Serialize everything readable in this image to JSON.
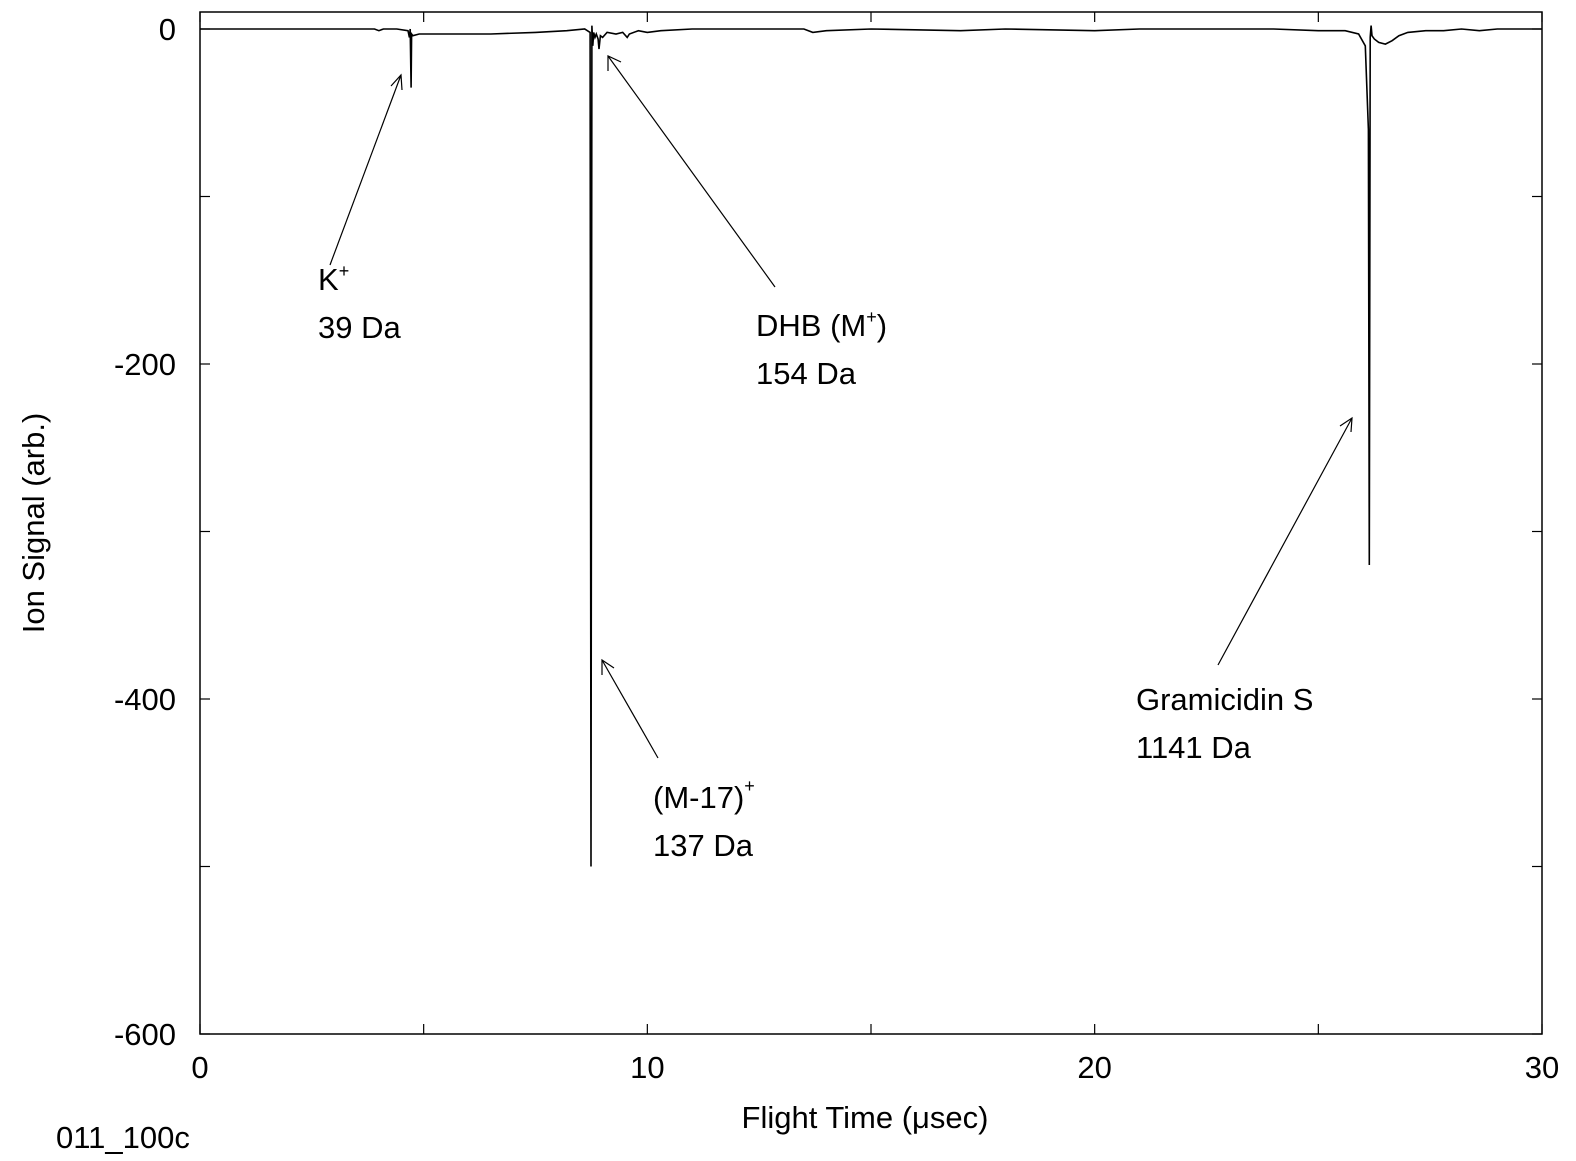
{
  "chart_data": {
    "type": "line",
    "title": "",
    "xlabel": "Flight Time (μsec)",
    "ylabel": "Ion Signal (arb.)",
    "xlim": [
      0,
      30
    ],
    "ylim": [
      -600,
      0
    ],
    "x_ticks": [
      0,
      10,
      20,
      30
    ],
    "y_ticks": [
      0,
      -200,
      -400,
      -600
    ],
    "x_tick_labels": [
      "0",
      "10",
      "20",
      "30"
    ],
    "y_tick_labels": [
      "0",
      "-200",
      "-400",
      "-600"
    ],
    "grid": false,
    "series": [
      {
        "x": [
          0,
          3.9,
          4.0,
          4.1,
          4.4,
          4.65,
          4.68,
          4.7,
          4.72,
          4.73,
          4.76,
          4.9,
          5.5,
          6.5,
          7.5,
          8.2,
          8.6,
          8.72,
          8.74,
          8.76,
          8.78,
          8.8,
          8.83,
          8.86,
          8.9,
          8.92,
          8.95,
          9.0,
          9.1,
          9.3,
          9.45,
          9.55,
          9.6,
          9.8,
          10.0,
          10.3,
          11.0,
          12.0,
          13.5,
          13.7,
          14.0,
          15.0,
          17.0,
          18.0,
          20.0,
          21.0,
          23.0,
          24.0,
          25.0,
          25.6,
          25.9,
          26.05,
          26.12,
          26.14,
          26.16,
          26.18,
          26.2,
          26.25,
          26.35,
          26.5,
          26.65,
          26.8,
          27.0,
          27.4,
          27.8,
          28.2,
          28.6,
          29.0,
          30.0
        ],
        "y": [
          0,
          0,
          -1,
          0,
          0,
          -1,
          -5,
          0,
          -35,
          -3,
          -4,
          -3,
          -3,
          -3,
          -2,
          -1,
          0,
          -2,
          -500,
          2,
          -10,
          -2,
          -5,
          -3,
          -6,
          -12,
          -4,
          -5,
          -2,
          -3,
          -2,
          -5,
          -3,
          -1,
          -2,
          -1,
          0,
          0,
          0,
          -2,
          -1,
          0,
          -1,
          0,
          -1,
          0,
          0,
          0,
          -1,
          -1,
          -3,
          -10,
          -60,
          -320,
          -5,
          2,
          -4,
          -6,
          -8,
          -9,
          -7,
          -4,
          -2,
          -1,
          -1,
          0,
          -1,
          0,
          0
        ]
      }
    ],
    "annotations": [
      {
        "lines": [
          "K+",
          "39 Da"
        ],
        "x": 4.7,
        "y": -30
      },
      {
        "lines": [
          "DHB (M+)",
          "154 Da"
        ],
        "x": 9.0,
        "y": -15
      },
      {
        "lines": [
          "(M-17)+",
          "137 Da"
        ],
        "x": 8.8,
        "y": -375
      },
      {
        "lines": [
          "Gramicidin S",
          "1141 Da"
        ],
        "x": 25.8,
        "y": -230
      }
    ],
    "footnote": "011_100c"
  }
}
